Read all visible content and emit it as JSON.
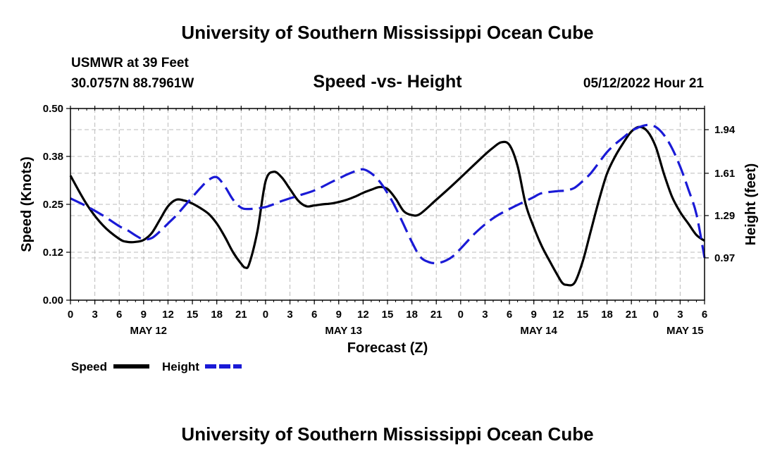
{
  "page": {
    "title": "University of Southern Mississippi Ocean Cube",
    "bottom_title": "University of Southern Mississippi Ocean Cube",
    "station": "USMWR at 39 Feet",
    "location": "30.0757N  88.7961W",
    "timestamp": "05/12/2022 Hour 21"
  },
  "chart_data": {
    "type": "line",
    "title": "Speed -vs- Height",
    "xlabel": "Forecast (Z)",
    "ylabel": "Speed (Knots)",
    "y2label": "Height (feet)",
    "ylim": [
      0,
      0.5
    ],
    "y2lim": [
      0.65,
      2.1
    ],
    "xlim": [
      0,
      78
    ],
    "grid": true,
    "legend_position": "bottom-left",
    "yticks": [
      "0.00",
      "0.12",
      "0.25",
      "0.38",
      "0.50"
    ],
    "yticks_values": [
      0,
      0.125,
      0.25,
      0.375,
      0.5
    ],
    "y2ticks": [
      "0.97",
      "1.29",
      "1.61",
      "1.94"
    ],
    "y2ticks_values": [
      0.97,
      1.29,
      1.61,
      1.94
    ],
    "xticks": [
      "0",
      "3",
      "6",
      "9",
      "12",
      "15",
      "18",
      "21",
      "0",
      "3",
      "6",
      "9",
      "12",
      "15",
      "18",
      "21",
      "0",
      "3",
      "6",
      "9",
      "12",
      "15",
      "18",
      "21",
      "0",
      "3",
      "6"
    ],
    "xticks_hours": [
      0,
      3,
      6,
      9,
      12,
      15,
      18,
      21,
      24,
      27,
      30,
      33,
      36,
      39,
      42,
      45,
      48,
      51,
      54,
      57,
      60,
      63,
      66,
      69,
      72,
      75,
      78
    ],
    "day_labels": [
      {
        "label": "MAY 12",
        "hour": 9.6
      },
      {
        "label": "MAY 13",
        "hour": 33.6
      },
      {
        "label": "MAY 14",
        "hour": 57.6
      },
      {
        "label": "MAY 15",
        "hour": 75.6
      }
    ],
    "series": [
      {
        "name": "Speed",
        "axis": "left",
        "color": "#000000",
        "style": "solid",
        "x": [
          0,
          2,
          4,
          6,
          7,
          8,
          9,
          10,
          11,
          12,
          13,
          14,
          15,
          16,
          17,
          18,
          19,
          20,
          21,
          21.5,
          22,
          23,
          24,
          25,
          26,
          27,
          28,
          29,
          30,
          31,
          32,
          33,
          34,
          35,
          36,
          37,
          38,
          39,
          40,
          41,
          42,
          43,
          45,
          47,
          49,
          51,
          52,
          53,
          54,
          55,
          56,
          57,
          58,
          59,
          60,
          60.5,
          61,
          62,
          63,
          64,
          65,
          66,
          67,
          68,
          69,
          70,
          71,
          72,
          73,
          74,
          75,
          76,
          77,
          78
        ],
        "values": [
          0.325,
          0.25,
          0.195,
          0.16,
          0.152,
          0.152,
          0.157,
          0.175,
          0.21,
          0.245,
          0.262,
          0.26,
          0.252,
          0.24,
          0.225,
          0.2,
          0.165,
          0.125,
          0.095,
          0.085,
          0.095,
          0.18,
          0.31,
          0.335,
          0.32,
          0.29,
          0.26,
          0.245,
          0.247,
          0.25,
          0.252,
          0.256,
          0.262,
          0.27,
          0.28,
          0.288,
          0.295,
          0.29,
          0.265,
          0.232,
          0.222,
          0.225,
          0.262,
          0.3,
          0.34,
          0.38,
          0.398,
          0.412,
          0.405,
          0.35,
          0.25,
          0.19,
          0.14,
          0.1,
          0.062,
          0.045,
          0.04,
          0.045,
          0.1,
          0.18,
          0.26,
          0.33,
          0.375,
          0.41,
          0.44,
          0.452,
          0.44,
          0.4,
          0.33,
          0.27,
          0.23,
          0.2,
          0.17,
          0.155
        ]
      },
      {
        "name": "Height",
        "axis": "right",
        "color": "#1a1ad6",
        "style": "dashed",
        "x": [
          0,
          2,
          4,
          6,
          7,
          8,
          9,
          10,
          11,
          12,
          13,
          14,
          15,
          16,
          17,
          18,
          19,
          20,
          21,
          22,
          24,
          26,
          28,
          30,
          32,
          33,
          34,
          35,
          36,
          37,
          38,
          39,
          40,
          41,
          42,
          43,
          44,
          45,
          46,
          47,
          48,
          50,
          52,
          54,
          56,
          57,
          58,
          60,
          61,
          62,
          63,
          64,
          65,
          66,
          67,
          68,
          69,
          70,
          71,
          72,
          73,
          74,
          75,
          76,
          77,
          78
        ],
        "values": [
          1.42,
          1.36,
          1.29,
          1.21,
          1.18,
          1.14,
          1.11,
          1.12,
          1.17,
          1.23,
          1.29,
          1.36,
          1.43,
          1.5,
          1.56,
          1.58,
          1.51,
          1.41,
          1.35,
          1.34,
          1.355,
          1.4,
          1.44,
          1.48,
          1.54,
          1.57,
          1.6,
          1.625,
          1.64,
          1.61,
          1.55,
          1.46,
          1.35,
          1.22,
          1.09,
          0.98,
          0.94,
          0.93,
          0.945,
          0.98,
          1.04,
          1.17,
          1.27,
          1.34,
          1.4,
          1.43,
          1.46,
          1.475,
          1.48,
          1.5,
          1.55,
          1.61,
          1.69,
          1.77,
          1.83,
          1.88,
          1.93,
          1.96,
          1.975,
          1.96,
          1.9,
          1.8,
          1.66,
          1.49,
          1.3,
          0.97
        ]
      }
    ]
  }
}
